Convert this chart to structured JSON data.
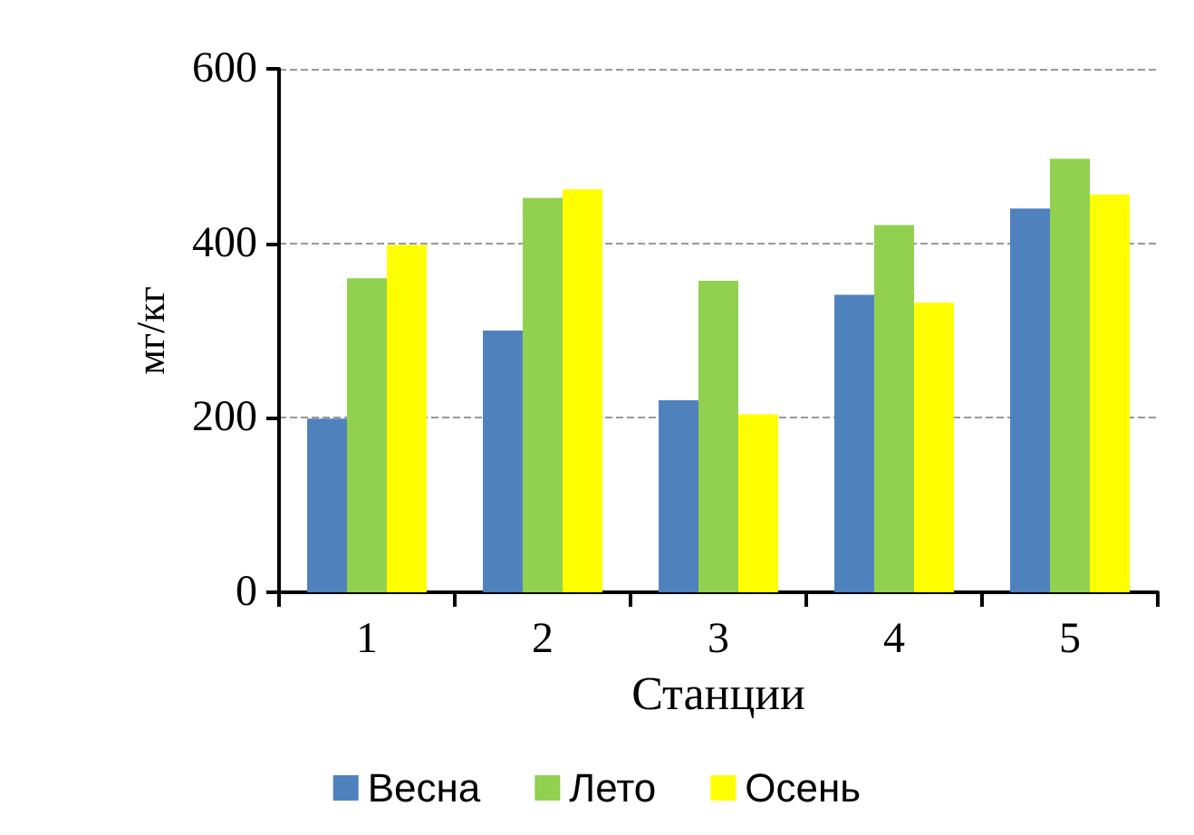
{
  "chart_data": {
    "type": "bar",
    "xlabel": "Станции",
    "ylabel": "мг/кг",
    "categories": [
      "1",
      "2",
      "3",
      "4",
      "5"
    ],
    "series": [
      {
        "name": "Весна",
        "color": "#4f81bd",
        "values": [
          199,
          300,
          220,
          341,
          440
        ]
      },
      {
        "name": "Лето",
        "color": "#92d050",
        "values": [
          360,
          452,
          357,
          421,
          497
        ]
      },
      {
        "name": "Осень",
        "color": "#ffff00",
        "values": [
          398,
          462,
          204,
          332,
          456
        ]
      }
    ],
    "ylim": [
      0,
      600
    ],
    "yticks": [
      0,
      200,
      400,
      600
    ],
    "grid": "y",
    "legend": "bottom"
  }
}
